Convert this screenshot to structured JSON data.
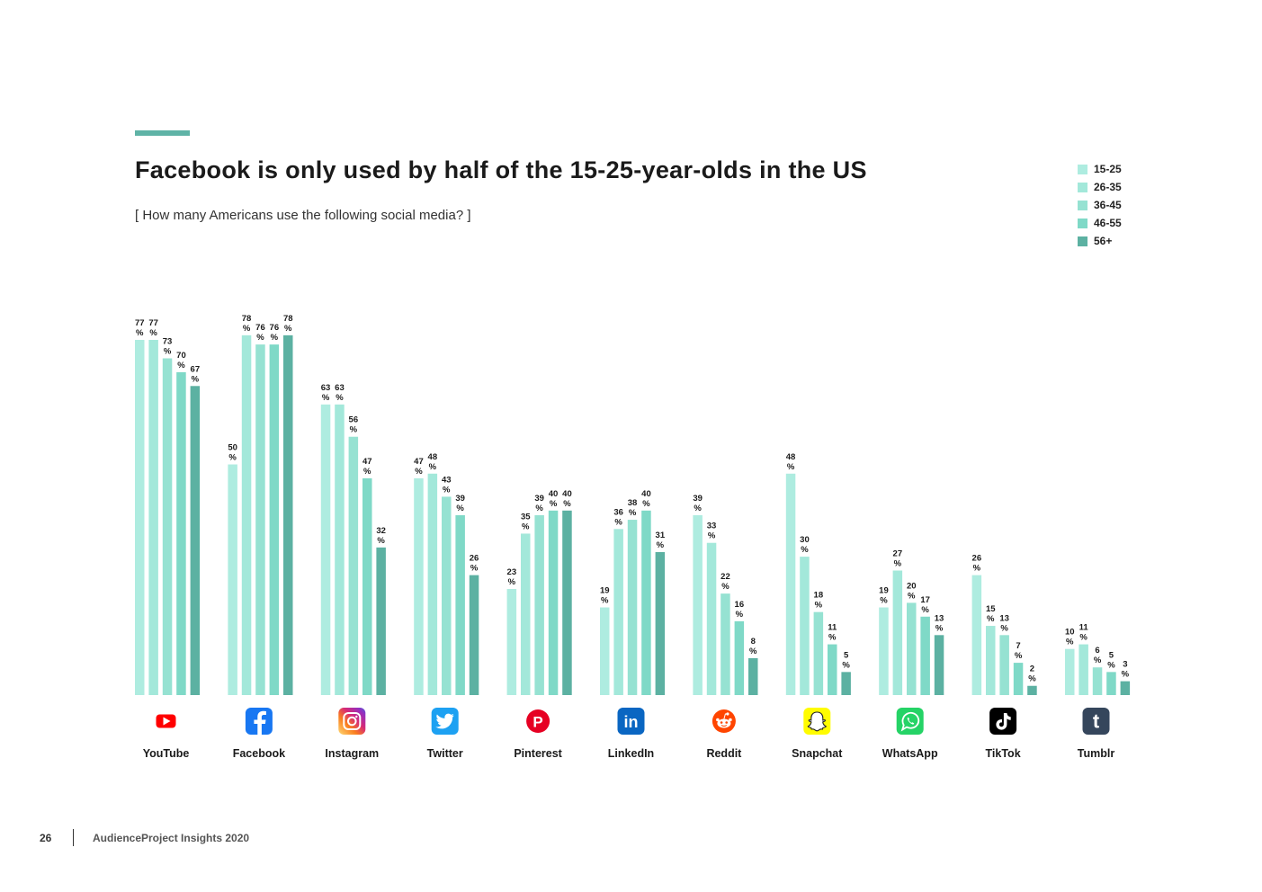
{
  "page": {
    "number": "26",
    "footer": "AudienceProject Insights 2020"
  },
  "chart_data": {
    "type": "bar",
    "title": "Facebook is only used by half of the 15-25-year-olds in the US",
    "subtitle": "[ How many Americans use the following social media? ]",
    "unit": "%",
    "ylim": [
      0,
      80
    ],
    "grid": false,
    "legend_position": "top-right",
    "categories": [
      "YouTube",
      "Facebook",
      "Instagram",
      "Twitter",
      "Pinterest",
      "LinkedIn",
      "Reddit",
      "Snapchat",
      "WhatsApp",
      "TikTok",
      "Tumblr"
    ],
    "icons": [
      "youtube-icon",
      "facebook-icon",
      "instagram-icon",
      "twitter-icon",
      "pinterest-icon",
      "linkedin-icon",
      "reddit-icon",
      "snapchat-icon",
      "whatsapp-icon",
      "tiktok-icon",
      "tumblr-icon"
    ],
    "series": [
      {
        "name": "15-25",
        "color": "#aeece0",
        "values": [
          77,
          50,
          63,
          47,
          23,
          19,
          39,
          48,
          19,
          26,
          10
        ]
      },
      {
        "name": "26-35",
        "color": "#a3e8da",
        "values": [
          77,
          78,
          63,
          48,
          35,
          36,
          33,
          30,
          27,
          15,
          11
        ]
      },
      {
        "name": "36-45",
        "color": "#96e2d2",
        "values": [
          73,
          76,
          56,
          43,
          39,
          38,
          22,
          18,
          20,
          13,
          6
        ]
      },
      {
        "name": "46-55",
        "color": "#7fd9c7",
        "values": [
          70,
          76,
          47,
          39,
          40,
          40,
          16,
          11,
          17,
          7,
          5
        ]
      },
      {
        "name": "56+",
        "color": "#5cb1a2",
        "values": [
          67,
          78,
          32,
          26,
          40,
          31,
          8,
          5,
          13,
          2,
          3
        ]
      }
    ]
  },
  "colors": {
    "accent": "#5fb3a6",
    "youtube": "#ff0000",
    "facebook": "#1877f2",
    "twitter": "#1da1f2",
    "pinterest": "#e60023",
    "linkedin": "#0a66c2",
    "reddit": "#ff4500",
    "snapchat": "#fffc00",
    "whatsapp": "#25d366",
    "tiktok": "#000000",
    "tumblr": "#35465c"
  }
}
